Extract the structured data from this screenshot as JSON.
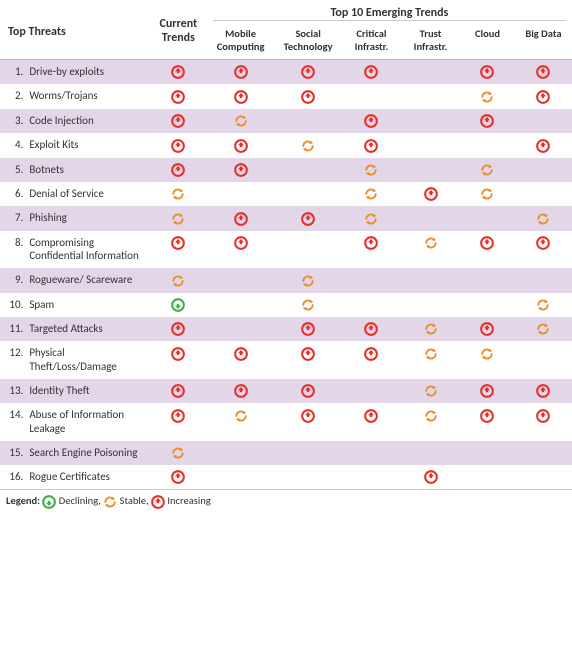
{
  "colors": {
    "increasing": "#e4322b",
    "stable": "#e98f2a",
    "declining": "#3fae49",
    "odd_row_bg": "#e3d6e8",
    "text": "#333333"
  },
  "headers": {
    "top_threats": "Top Threats",
    "current_trends": "Current\nTrends",
    "emerging_group": "Top 10 Emerging Trends",
    "cols": [
      "Mobile Computing",
      "Social Technology",
      "Critical Infrastr.",
      "Trust Infrastr.",
      "Cloud",
      "Big Data"
    ]
  },
  "legend": {
    "prefix": "Legend:",
    "items": [
      {
        "icon": "declining",
        "label": "Declining,"
      },
      {
        "icon": "stable",
        "label": "Stable,"
      },
      {
        "icon": "increasing",
        "label": "Increasing"
      }
    ]
  },
  "icon_meaning": {
    "I": "increasing",
    "S": "stable",
    "D": "declining",
    "": null
  },
  "rows": [
    {
      "n": "1.",
      "label": "Drive-by exploits",
      "cells": [
        "I",
        "I",
        "I",
        "I",
        "",
        "I",
        "I"
      ]
    },
    {
      "n": "2.",
      "label": "Worms/Trojans",
      "cells": [
        "I",
        "I",
        "I",
        "",
        "",
        "S",
        "I"
      ]
    },
    {
      "n": "3.",
      "label": "Code Injection",
      "cells": [
        "I",
        "S",
        "",
        "I",
        "",
        "I",
        ""
      ]
    },
    {
      "n": "4.",
      "label": "Exploit Kits",
      "cells": [
        "I",
        "I",
        "S",
        "I",
        "",
        "",
        "I"
      ]
    },
    {
      "n": "5.",
      "label": "Botnets",
      "cells": [
        "I",
        "I",
        "",
        "S",
        "",
        "S",
        ""
      ]
    },
    {
      "n": "6.",
      "label": "Denial of Service",
      "cells": [
        "S",
        "",
        "",
        "S",
        "I",
        "S",
        ""
      ]
    },
    {
      "n": "7.",
      "label": "Phishing",
      "cells": [
        "S",
        "I",
        "I",
        "S",
        "",
        "",
        "S"
      ]
    },
    {
      "n": "8.",
      "label": "Compromising Confidential Information",
      "cells": [
        "I",
        "I",
        "",
        "I",
        "S",
        "I",
        "I"
      ]
    },
    {
      "n": "9.",
      "label": "Rogueware/ Scareware",
      "cells": [
        "S",
        "",
        "S",
        "",
        "",
        "",
        ""
      ]
    },
    {
      "n": "10.",
      "label": "Spam",
      "cells": [
        "D",
        "",
        "S",
        "",
        "",
        "",
        "S"
      ]
    },
    {
      "n": "11.",
      "label": "Targeted Attacks",
      "cells": [
        "I",
        "",
        "I",
        "I",
        "S",
        "I",
        "S"
      ]
    },
    {
      "n": "12.",
      "label": "Physical Theft/Loss/Damage",
      "cells": [
        "I",
        "I",
        "I",
        "I",
        "S",
        "S",
        ""
      ]
    },
    {
      "n": "13.",
      "label": "Identity Theft",
      "cells": [
        "I",
        "I",
        "I",
        "",
        "S",
        "I",
        "I"
      ]
    },
    {
      "n": "14.",
      "label": "Abuse of Information Leakage",
      "cells": [
        "I",
        "S",
        "I",
        "I",
        "S",
        "I",
        "I"
      ]
    },
    {
      "n": "15.",
      "label": "Search Engine Poisoning",
      "cells": [
        "S",
        "",
        "",
        "",
        "",
        "",
        ""
      ]
    },
    {
      "n": "16.",
      "label": "Rogue Certificates",
      "cells": [
        "I",
        "",
        "",
        "",
        "I",
        "",
        ""
      ]
    }
  ]
}
